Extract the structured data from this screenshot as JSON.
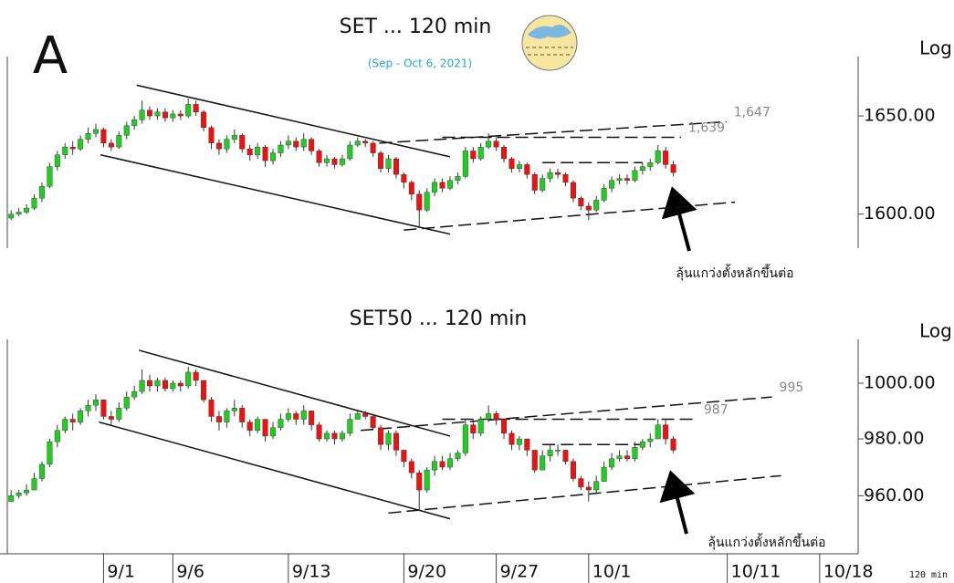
{
  "panel_label": "A",
  "interval_label": "120 min",
  "chart_data": [
    {
      "type": "candlestick",
      "title": "SET ... 120 min",
      "subtitle": "(Sep - Oct 6, 2021)",
      "y_label": "Log",
      "log_scale": true,
      "up_color": "#22cc22",
      "down_color": "#ee1111",
      "ylim": [
        1583,
        1681
      ],
      "yticks": [
        {
          "value": 1600,
          "label": "1600.00"
        },
        {
          "value": 1650,
          "label": "1650.00"
        }
      ],
      "open": [
        1598,
        1600,
        1601,
        1603,
        1608,
        1614,
        1624,
        1630,
        1634,
        1633,
        1638,
        1641,
        1643,
        1636,
        1634,
        1640,
        1645,
        1648,
        1653,
        1650,
        1652,
        1649,
        1651,
        1650,
        1656,
        1652,
        1644,
        1636,
        1633,
        1638,
        1640,
        1633,
        1630,
        1634,
        1627,
        1631,
        1635,
        1637,
        1634,
        1638,
        1632,
        1626,
        1628,
        1625,
        1628,
        1635,
        1637,
        1636,
        1631,
        1623,
        1628,
        1620,
        1616,
        1610,
        1602,
        1611,
        1616,
        1613,
        1617,
        1619,
        1632,
        1628,
        1634,
        1637,
        1634,
        1628,
        1623,
        1625,
        1620,
        1612,
        1618,
        1621,
        1620,
        1616,
        1608,
        1604,
        1602,
        1607,
        1613,
        1617,
        1618,
        1617,
        1622,
        1624,
        1626,
        1632,
        1625
      ],
      "high": [
        1602,
        1603,
        1605,
        1610,
        1616,
        1626,
        1632,
        1636,
        1637,
        1640,
        1644,
        1646,
        1644,
        1638,
        1642,
        1647,
        1650,
        1658,
        1655,
        1654,
        1654,
        1653,
        1653,
        1659,
        1658,
        1653,
        1645,
        1638,
        1640,
        1643,
        1641,
        1635,
        1636,
        1635,
        1633,
        1637,
        1640,
        1639,
        1641,
        1639,
        1633,
        1630,
        1629,
        1630,
        1637,
        1639,
        1638,
        1637,
        1632,
        1630,
        1629,
        1621,
        1617,
        1612,
        1613,
        1618,
        1618,
        1619,
        1621,
        1634,
        1634,
        1636,
        1641,
        1639,
        1635,
        1629,
        1627,
        1626,
        1621,
        1620,
        1623,
        1623,
        1621,
        1617,
        1609,
        1606,
        1609,
        1615,
        1619,
        1620,
        1620,
        1624,
        1626,
        1628,
        1635,
        1634,
        1627
      ],
      "low": [
        1597,
        1599,
        1600,
        1602,
        1606,
        1613,
        1622,
        1628,
        1630,
        1632,
        1636,
        1639,
        1634,
        1632,
        1633,
        1638,
        1643,
        1646,
        1648,
        1648,
        1647,
        1647,
        1648,
        1649,
        1650,
        1642,
        1633,
        1630,
        1631,
        1636,
        1631,
        1627,
        1628,
        1624,
        1625,
        1629,
        1633,
        1632,
        1632,
        1630,
        1624,
        1624,
        1623,
        1624,
        1627,
        1634,
        1634,
        1629,
        1621,
        1621,
        1618,
        1613,
        1607,
        1593,
        1601,
        1609,
        1611,
        1612,
        1615,
        1618,
        1626,
        1627,
        1633,
        1632,
        1626,
        1621,
        1621,
        1618,
        1610,
        1611,
        1616,
        1618,
        1614,
        1606,
        1602,
        1597,
        1601,
        1606,
        1611,
        1615,
        1615,
        1616,
        1620,
        1622,
        1625,
        1623,
        1619
      ],
      "close": [
        1600,
        1601,
        1603,
        1608,
        1614,
        1624,
        1630,
        1634,
        1633,
        1638,
        1641,
        1643,
        1636,
        1634,
        1640,
        1645,
        1648,
        1653,
        1650,
        1652,
        1649,
        1651,
        1650,
        1656,
        1652,
        1644,
        1636,
        1633,
        1638,
        1640,
        1633,
        1630,
        1634,
        1627,
        1631,
        1635,
        1637,
        1634,
        1638,
        1632,
        1626,
        1628,
        1625,
        1628,
        1635,
        1637,
        1636,
        1631,
        1623,
        1628,
        1620,
        1616,
        1610,
        1602,
        1611,
        1616,
        1613,
        1617,
        1619,
        1632,
        1628,
        1634,
        1637,
        1634,
        1628,
        1623,
        1625,
        1620,
        1612,
        1618,
        1621,
        1620,
        1616,
        1608,
        1604,
        1602,
        1607,
        1613,
        1617,
        1618,
        1617,
        1622,
        1624,
        1626,
        1632,
        1625,
        1621
      ],
      "trendlines": [
        {
          "from": [
            16.3,
            1666
          ],
          "to": [
            57,
            1629
          ],
          "style": "solid"
        },
        {
          "from": [
            11.6,
            1630
          ],
          "to": [
            57,
            1590
          ],
          "style": "solid"
        },
        {
          "from": [
            47.8,
            1636
          ],
          "to": [
            92.9,
            1647
          ],
          "style": "dashed",
          "label": "1,647"
        },
        {
          "from": [
            56,
            1639
          ],
          "to": [
            87,
            1639
          ],
          "style": "dashed",
          "label": "1,639"
        },
        {
          "from": [
            69,
            1626
          ],
          "to": [
            82,
            1626
          ],
          "style": "dashed"
        },
        {
          "from": [
            51,
            1592
          ],
          "to": [
            94,
            1606
          ],
          "style": "dashed"
        }
      ],
      "annotation": "ลุ้นแกว่งตั้งหลักขึ้นต่อ"
    },
    {
      "type": "candlestick",
      "title": "SET50 ... 120 min",
      "y_label": "Log",
      "log_scale": true,
      "up_color": "#22cc22",
      "down_color": "#ee1111",
      "ylim": [
        940,
        1016
      ],
      "yticks": [
        {
          "value": 960,
          "label": "960.00"
        },
        {
          "value": 980,
          "label": "980.00"
        },
        {
          "value": 1000,
          "label": "1000.00"
        }
      ],
      "xlim": [
        -0.5,
        110
      ],
      "xticks": [
        {
          "value": 12,
          "label": "9/1"
        },
        {
          "value": 21,
          "label": "9/6"
        },
        {
          "value": 36,
          "label": "9/13"
        },
        {
          "value": 51,
          "label": "9/20"
        },
        {
          "value": 63,
          "label": "9/27"
        },
        {
          "value": 75,
          "label": "10/1"
        },
        {
          "value": 93,
          "label": "10/11"
        },
        {
          "value": 105,
          "label": "10/18"
        }
      ],
      "open": [
        958,
        960,
        961,
        962,
        966,
        971,
        979,
        983,
        987,
        986,
        990,
        992,
        994,
        988,
        987,
        991,
        995,
        997,
        1001,
        999,
        1001,
        998,
        1000,
        999,
        1004,
        1001,
        994,
        988,
        986,
        990,
        991,
        986,
        983,
        987,
        981,
        984,
        987,
        989,
        987,
        990,
        985,
        980,
        982,
        980,
        982,
        987,
        989,
        988,
        984,
        978,
        982,
        976,
        972,
        968,
        962,
        969,
        972,
        970,
        973,
        975,
        985,
        982,
        987,
        989,
        987,
        982,
        978,
        980,
        976,
        969,
        974,
        976,
        976,
        972,
        966,
        963,
        962,
        965,
        970,
        973,
        974,
        973,
        977,
        979,
        980,
        985,
        980
      ],
      "high": [
        962,
        962,
        964,
        968,
        972,
        980,
        985,
        988,
        989,
        991,
        994,
        996,
        994,
        990,
        993,
        997,
        999,
        1005,
        1003,
        1002,
        1002,
        1001,
        1001,
        1006,
        1005,
        1001,
        995,
        990,
        991,
        994,
        992,
        987,
        988,
        987,
        986,
        989,
        991,
        990,
        992,
        990,
        986,
        983,
        983,
        983,
        989,
        990,
        990,
        989,
        985,
        983,
        983,
        976,
        973,
        969,
        970,
        974,
        974,
        975,
        976,
        987,
        987,
        988,
        992,
        990,
        987,
        983,
        981,
        980,
        976,
        976,
        978,
        978,
        976,
        973,
        967,
        965,
        967,
        972,
        975,
        976,
        976,
        979,
        980,
        982,
        987,
        987,
        981
      ],
      "low": [
        958,
        959,
        960,
        962,
        965,
        970,
        977,
        982,
        983,
        985,
        988,
        990,
        987,
        985,
        986,
        990,
        994,
        996,
        997,
        997,
        997,
        997,
        997,
        998,
        999,
        993,
        986,
        983,
        984,
        988,
        984,
        981,
        982,
        979,
        980,
        983,
        986,
        985,
        985,
        983,
        979,
        979,
        978,
        979,
        981,
        987,
        987,
        983,
        976,
        976,
        974,
        970,
        966,
        955,
        961,
        967,
        969,
        969,
        972,
        974,
        980,
        981,
        986,
        985,
        980,
        976,
        976,
        974,
        968,
        969,
        972,
        974,
        971,
        965,
        962,
        958,
        961,
        965,
        969,
        972,
        972,
        972,
        976,
        977,
        980,
        978,
        975
      ],
      "close": [
        960,
        961,
        962,
        966,
        971,
        979,
        983,
        987,
        986,
        990,
        992,
        994,
        988,
        987,
        991,
        995,
        997,
        1001,
        999,
        1001,
        998,
        1000,
        999,
        1004,
        1001,
        994,
        988,
        986,
        990,
        991,
        986,
        983,
        987,
        981,
        984,
        987,
        989,
        987,
        990,
        985,
        980,
        982,
        980,
        982,
        987,
        989,
        988,
        984,
        978,
        982,
        976,
        972,
        968,
        962,
        969,
        972,
        970,
        973,
        975,
        985,
        982,
        987,
        989,
        987,
        982,
        978,
        980,
        976,
        969,
        974,
        976,
        976,
        972,
        966,
        963,
        962,
        965,
        970,
        973,
        974,
        973,
        977,
        979,
        980,
        985,
        980,
        976
      ],
      "trendlines": [
        {
          "from": [
            16.6,
            1012
          ],
          "to": [
            57,
            981
          ],
          "style": "solid"
        },
        {
          "from": [
            11.4,
            986
          ],
          "to": [
            57,
            952
          ],
          "style": "solid"
        },
        {
          "from": [
            45.4,
            983
          ],
          "to": [
            98.8,
            995
          ],
          "style": "dashed",
          "label": "995"
        },
        {
          "from": [
            56,
            987
          ],
          "to": [
            89,
            987
          ],
          "style": "dashed",
          "label": "987"
        },
        {
          "from": [
            69,
            978
          ],
          "to": [
            82,
            978
          ],
          "style": "dashed"
        },
        {
          "from": [
            49,
            954
          ],
          "to": [
            100,
            967
          ],
          "style": "dashed"
        }
      ],
      "annotation": "ลุ้นแกว่งตั้งหลักขึ้นต่อ"
    }
  ]
}
